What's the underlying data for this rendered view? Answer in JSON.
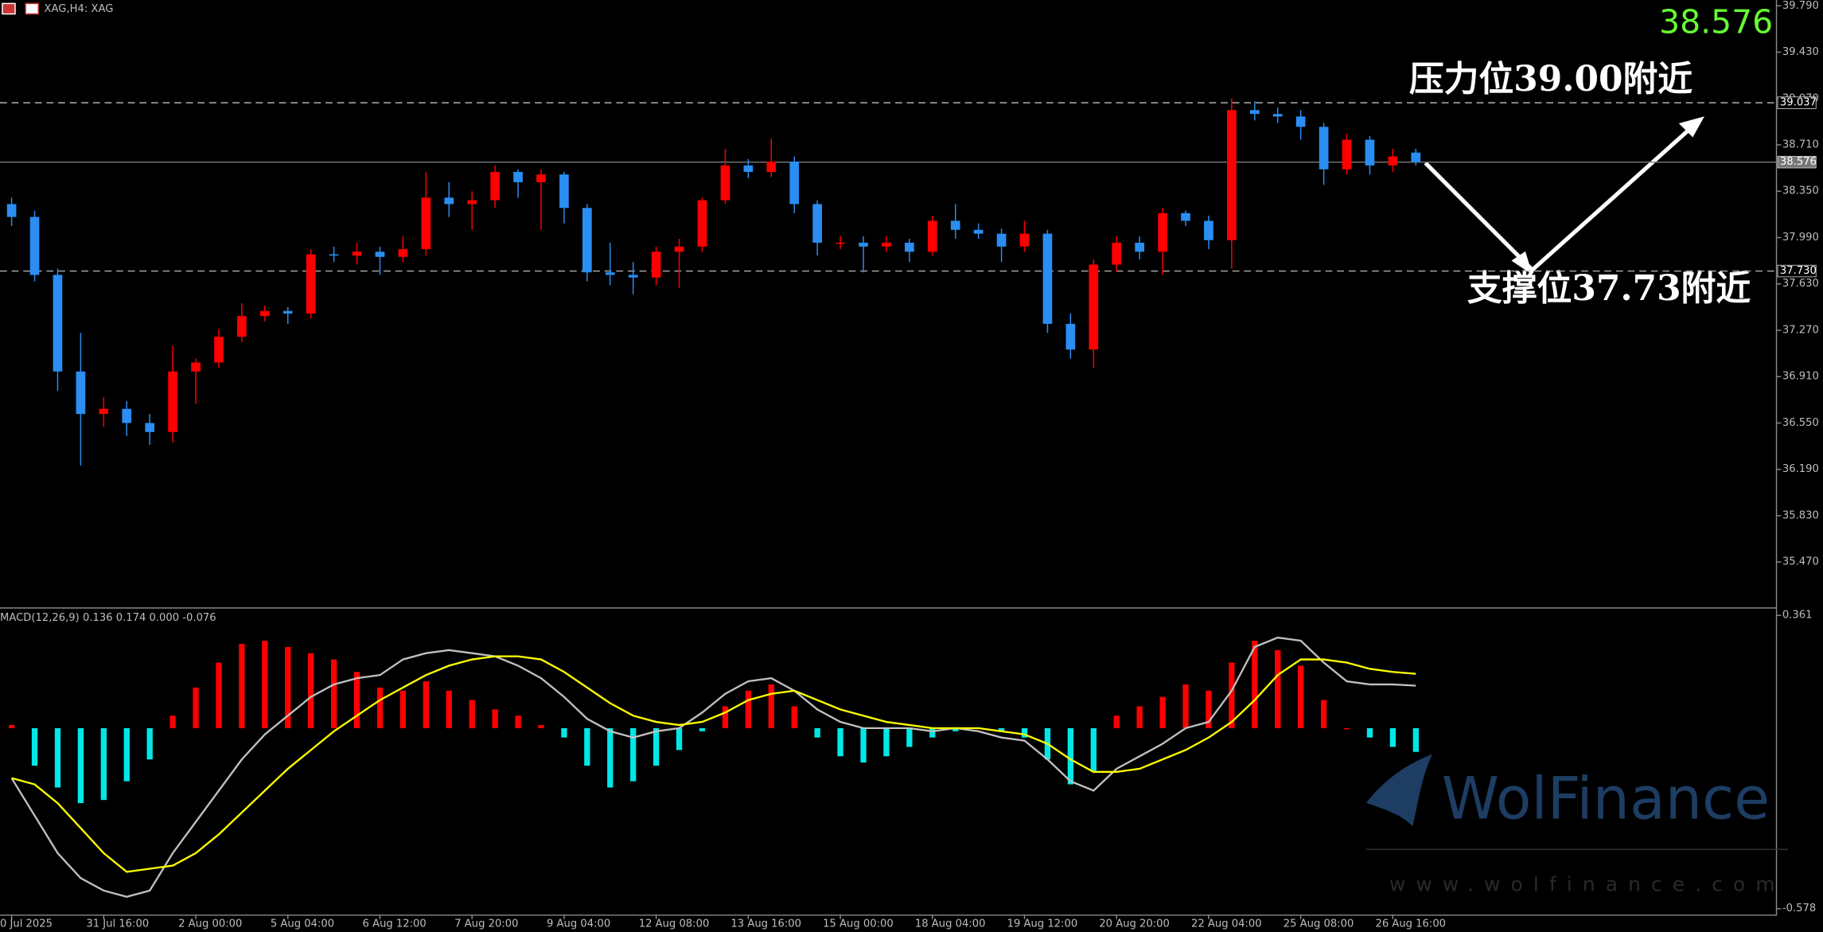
{
  "chart_data": {
    "type": "candlestick",
    "header": "XAG,H4: XAG",
    "categories": [
      "0 Jul 2025",
      null,
      null,
      null,
      "31 Jul 16:00",
      null,
      null,
      null,
      "2 Aug 00:00",
      null,
      null,
      null,
      "5 Aug 04:00",
      null,
      null,
      null,
      "6 Aug 12:00",
      null,
      null,
      null,
      "7 Aug 20:00",
      null,
      null,
      null,
      "9 Aug 04:00",
      null,
      null,
      null,
      "12 Aug 08:00",
      null,
      null,
      null,
      "13 Aug 16:00",
      null,
      null,
      null,
      "15 Aug 00:00",
      null,
      null,
      null,
      "18 Aug 04:00",
      null,
      null,
      null,
      "19 Aug 12:00",
      null,
      null,
      null,
      "20 Aug 20:00",
      null,
      null,
      null,
      "22 Aug 04:00",
      null,
      null,
      null,
      "25 Aug 08:00",
      null,
      null,
      null,
      "26 Aug 16:00",
      null
    ],
    "open": [
      38.25,
      38.15,
      37.7,
      36.95,
      36.62,
      36.66,
      36.55,
      36.48,
      36.95,
      37.02,
      37.22,
      37.38,
      37.42,
      37.4,
      37.86,
      37.85,
      37.88,
      37.84,
      37.9,
      38.3,
      38.25,
      38.28,
      38.5,
      38.42,
      38.48,
      38.22,
      37.72,
      37.7,
      37.68,
      37.88,
      37.92,
      38.28,
      38.55,
      38.5,
      38.58,
      38.25,
      37.95,
      37.95,
      37.92,
      37.95,
      37.88,
      38.12,
      38.05,
      38.02,
      37.92,
      38.02,
      37.32,
      37.12,
      37.78,
      37.95,
      37.88,
      38.18,
      38.12,
      37.97,
      38.98,
      38.95,
      38.93,
      38.85,
      38.52,
      38.75,
      38.55,
      38.65
    ],
    "high": [
      38.3,
      38.2,
      37.75,
      37.25,
      36.75,
      36.72,
      36.62,
      37.15,
      37.05,
      37.28,
      37.48,
      37.46,
      37.45,
      37.9,
      37.92,
      37.95,
      37.92,
      38.0,
      38.5,
      38.42,
      38.35,
      38.55,
      38.52,
      38.52,
      38.5,
      38.25,
      37.95,
      37.8,
      37.92,
      37.98,
      38.3,
      38.68,
      38.6,
      38.76,
      38.62,
      38.28,
      38.0,
      38.0,
      38.0,
      37.98,
      38.16,
      38.25,
      38.1,
      38.06,
      38.12,
      38.05,
      37.4,
      37.82,
      38.0,
      38.0,
      38.22,
      38.2,
      38.16,
      39.07,
      39.05,
      39.0,
      38.98,
      38.88,
      38.8,
      38.78,
      38.68,
      38.68
    ],
    "low": [
      38.08,
      37.65,
      36.8,
      36.22,
      36.52,
      36.45,
      36.38,
      36.4,
      36.7,
      36.98,
      37.18,
      37.34,
      37.32,
      37.36,
      37.8,
      37.78,
      37.7,
      37.8,
      37.85,
      38.15,
      38.05,
      38.22,
      38.3,
      38.05,
      38.1,
      37.65,
      37.62,
      37.55,
      37.62,
      37.6,
      37.88,
      38.25,
      38.45,
      38.46,
      38.18,
      37.85,
      37.9,
      37.72,
      37.88,
      37.8,
      37.85,
      37.98,
      37.98,
      37.8,
      37.88,
      37.25,
      37.05,
      36.98,
      37.72,
      37.82,
      37.7,
      38.08,
      37.9,
      37.75,
      38.9,
      38.88,
      38.75,
      38.4,
      38.48,
      38.48,
      38.5,
      38.55
    ],
    "close": [
      38.15,
      37.7,
      36.95,
      36.62,
      36.66,
      36.55,
      36.48,
      36.95,
      37.02,
      37.22,
      37.38,
      37.42,
      37.4,
      37.86,
      37.85,
      37.88,
      37.84,
      37.9,
      38.3,
      38.25,
      38.28,
      38.5,
      38.42,
      38.48,
      38.22,
      37.72,
      37.7,
      37.68,
      37.88,
      37.92,
      38.28,
      38.55,
      38.5,
      38.58,
      38.25,
      37.95,
      37.95,
      37.92,
      37.95,
      37.88,
      38.12,
      38.05,
      38.02,
      37.92,
      38.02,
      37.32,
      37.12,
      37.78,
      37.95,
      37.88,
      38.18,
      38.12,
      37.97,
      38.98,
      38.95,
      38.93,
      38.85,
      38.52,
      38.75,
      38.55,
      38.62,
      38.576
    ],
    "up_color": "#ff0000",
    "down_color": "#2a8ef2",
    "ylim": [
      35.118,
      39.835
    ],
    "yticks": [
      {
        "value": 39.79,
        "label": "39.790"
      },
      {
        "value": 39.43,
        "label": "39.430"
      },
      {
        "value": 39.07,
        "label": "39.070"
      },
      {
        "value": 38.71,
        "label": "38.710"
      },
      {
        "value": 38.35,
        "label": "38.350"
      },
      {
        "value": 37.99,
        "label": "37.990"
      },
      {
        "value": 37.63,
        "label": "37.630"
      },
      {
        "value": 37.27,
        "label": "37.270"
      },
      {
        "value": 36.91,
        "label": "36.910"
      },
      {
        "value": 36.55,
        "label": "36.550"
      },
      {
        "value": 36.19,
        "label": "36.190"
      },
      {
        "value": 35.83,
        "label": "35.830"
      },
      {
        "value": 35.47,
        "label": "35.470"
      }
    ],
    "price_lines": [
      {
        "value": 39.037,
        "label": "39.037",
        "style": "dashed"
      },
      {
        "value": 38.576,
        "label": "38.576",
        "style": "solid"
      },
      {
        "value": 37.73,
        "label": "37.730",
        "style": "dashed"
      }
    ],
    "annotations": [
      "压力位39.00附近",
      "支撑位37.73附近"
    ],
    "watermark": [
      "WolFinance",
      "www.wolfinance.com"
    ],
    "macd": {
      "label": "MACD(12,26,9) 0.136 0.174 0.000 -0.076",
      "ylim": [
        -0.593,
        0.383
      ],
      "yticks": [
        {
          "value": 0.361,
          "label": "0.361"
        },
        {
          "value": -0.578,
          "label": "-0.578"
        }
      ],
      "histogram": [
        0.01,
        -0.12,
        -0.19,
        -0.24,
        -0.23,
        -0.17,
        -0.1,
        0.04,
        0.13,
        0.21,
        0.27,
        0.28,
        0.26,
        0.24,
        0.22,
        0.18,
        0.13,
        0.12,
        0.15,
        0.12,
        0.09,
        0.06,
        0.04,
        0.01,
        -0.03,
        -0.12,
        -0.19,
        -0.17,
        -0.12,
        -0.07,
        -0.01,
        0.07,
        0.12,
        0.14,
        0.07,
        -0.03,
        -0.09,
        -0.11,
        -0.09,
        -0.06,
        -0.03,
        -0.01,
        0.0,
        -0.01,
        -0.03,
        -0.1,
        -0.18,
        -0.14,
        0.04,
        0.07,
        0.1,
        0.14,
        0.12,
        0.21,
        0.28,
        0.25,
        0.2,
        0.09,
        0.0,
        -0.03,
        -0.06,
        -0.076
      ],
      "pos_color": "#ff0000",
      "neg_color": "#00e8e8",
      "series": [
        {
          "color": "#c0c0c0",
          "values": [
            -0.16,
            -0.28,
            -0.4,
            -0.48,
            -0.52,
            -0.54,
            -0.52,
            -0.4,
            -0.3,
            -0.2,
            -0.1,
            -0.02,
            0.04,
            0.1,
            0.14,
            0.16,
            0.17,
            0.22,
            0.24,
            0.25,
            0.24,
            0.23,
            0.2,
            0.16,
            0.1,
            0.03,
            -0.01,
            -0.03,
            -0.01,
            0.0,
            0.05,
            0.11,
            0.15,
            0.16,
            0.12,
            0.06,
            0.02,
            0.0,
            0.0,
            0.0,
            -0.01,
            0.0,
            -0.01,
            -0.03,
            -0.04,
            -0.1,
            -0.17,
            -0.2,
            -0.13,
            -0.09,
            -0.05,
            0.0,
            0.02,
            0.12,
            0.26,
            0.29,
            0.28,
            0.21,
            0.15,
            0.14,
            0.14,
            0.136
          ]
        },
        {
          "color": "#ffff00",
          "values": [
            -0.16,
            -0.18,
            -0.24,
            -0.32,
            -0.4,
            -0.46,
            -0.45,
            -0.44,
            -0.4,
            -0.34,
            -0.27,
            -0.2,
            -0.13,
            -0.07,
            -0.01,
            0.04,
            0.09,
            0.13,
            0.17,
            0.2,
            0.22,
            0.23,
            0.23,
            0.22,
            0.18,
            0.13,
            0.08,
            0.04,
            0.02,
            0.01,
            0.02,
            0.05,
            0.09,
            0.11,
            0.12,
            0.09,
            0.06,
            0.04,
            0.02,
            0.01,
            0.0,
            0.0,
            0.0,
            -0.01,
            -0.02,
            -0.05,
            -0.1,
            -0.14,
            -0.14,
            -0.13,
            -0.1,
            -0.07,
            -0.03,
            0.02,
            0.09,
            0.17,
            0.22,
            0.22,
            0.21,
            0.19,
            0.18,
            0.174
          ]
        }
      ]
    }
  }
}
